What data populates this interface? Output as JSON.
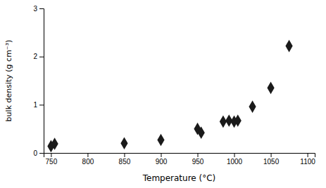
{
  "chart_data": {
    "type": "scatter",
    "x": [
      750,
      755,
      850,
      900,
      950,
      955,
      985,
      993,
      1000,
      1005,
      1025,
      1050,
      1075
    ],
    "y": [
      0.14,
      0.19,
      0.2,
      0.27,
      0.5,
      0.42,
      0.65,
      0.67,
      0.65,
      0.67,
      0.96,
      1.35,
      2.22
    ],
    "xlabel": "Temperature  (°C)",
    "ylabel": "bulk density (g cm⁻³)",
    "xlim": [
      740,
      1110
    ],
    "ylim": [
      0,
      3
    ],
    "xticks": [
      750,
      800,
      850,
      900,
      950,
      1000,
      1050,
      1100
    ],
    "yticks": [
      0,
      1,
      2,
      3
    ],
    "marker": "diamond",
    "color": "#1a1a1a"
  }
}
